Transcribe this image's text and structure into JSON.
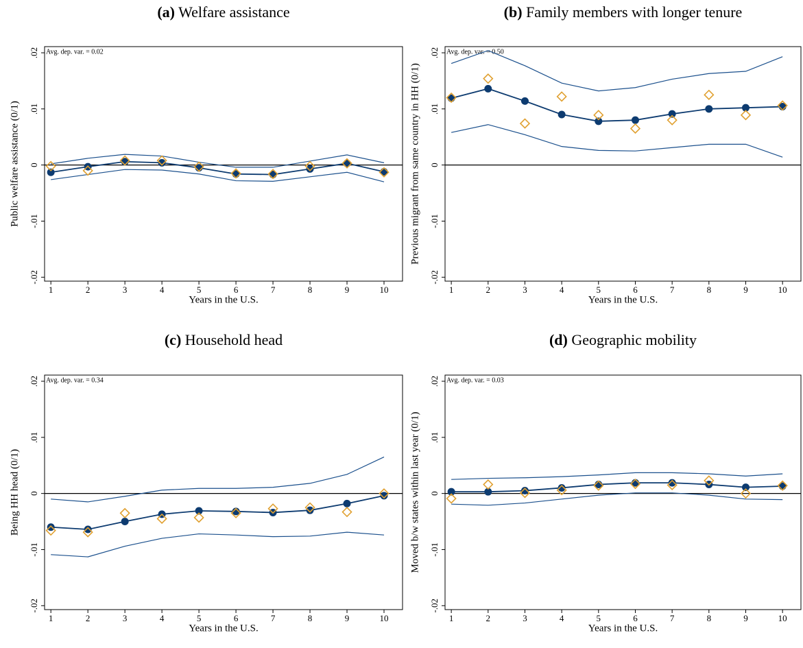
{
  "chart_data": [
    {
      "type": "line",
      "panel": "(a)",
      "title": "Welfare assistance",
      "xlabel": "Years in the U.S.",
      "ylabel": "Public welfare assistance (0/1)",
      "annotation": "Avg. dep. var. = 0.02",
      "x": [
        1,
        2,
        3,
        4,
        5,
        6,
        7,
        8,
        9,
        10
      ],
      "xlim": [
        0.83,
        10.5
      ],
      "xticks": [
        1,
        2,
        3,
        4,
        5,
        6,
        7,
        8,
        9,
        10
      ],
      "ylim": [
        -0.0207,
        0.0211
      ],
      "yticks": [
        {
          "value": -0.02,
          "label": "-.02"
        },
        {
          "value": -0.01,
          "label": "-.01"
        },
        0,
        {
          "value": 0.01,
          "label": ".01"
        },
        {
          "value": 0.02,
          "label": ".02"
        }
      ],
      "series": [
        {
          "color": "#1a4f8c",
          "marker": "none",
          "values": [
            0.0002,
            0.0012,
            0.0019,
            0.0016,
            0.0005,
            -0.0004,
            -0.0004,
            0.0007,
            0.0018,
            0.0004
          ]
        },
        {
          "color": "#1a4f8c",
          "marker": "none",
          "values": [
            -0.0026,
            -0.0017,
            -0.0008,
            -0.0009,
            -0.0016,
            -0.0028,
            -0.0029,
            -0.0021,
            -0.0013,
            -0.003
          ]
        },
        {
          "color": "#0d3b70",
          "marker": "circle",
          "values": [
            -0.0013,
            -0.0003,
            0.0006,
            0.0004,
            -0.0005,
            -0.0016,
            -0.0017,
            -0.0007,
            0.0003,
            -0.0012
          ]
        },
        {
          "color": "#e0a030",
          "marker": "diamond",
          "values": [
            -0.0002,
            -0.001,
            0.0008,
            0.0008,
            -0.0003,
            -0.0015,
            -0.0016,
            -0.0002,
            0.0003,
            -0.0013
          ]
        }
      ]
    },
    {
      "type": "line",
      "panel": "(b)",
      "title": "Family members with longer tenure",
      "xlabel": "Years in the U.S.",
      "ylabel": "Previous migrant from same country in HH (0/1)",
      "annotation": "Avg. dep. var. = 0.50",
      "x": [
        1,
        2,
        3,
        4,
        5,
        6,
        7,
        8,
        9,
        10
      ],
      "xlim": [
        0.83,
        10.5
      ],
      "xticks": [
        1,
        2,
        3,
        4,
        5,
        6,
        7,
        8,
        9,
        10
      ],
      "ylim": [
        -0.0207,
        0.0211
      ],
      "yticks": [
        {
          "value": -0.02,
          "label": "-.02"
        },
        {
          "value": -0.01,
          "label": "-.01"
        },
        0,
        {
          "value": 0.01,
          "label": ".01"
        },
        {
          "value": 0.02,
          "label": ".02"
        }
      ],
      "series": [
        {
          "color": "#1a4f8c",
          "marker": "none",
          "values": [
            0.0181,
            0.0204,
            0.0177,
            0.0146,
            0.0132,
            0.0138,
            0.0153,
            0.0163,
            0.0167,
            0.0193
          ]
        },
        {
          "color": "#1a4f8c",
          "marker": "none",
          "values": [
            0.0058,
            0.0072,
            0.0054,
            0.0033,
            0.0026,
            0.0025,
            0.0031,
            0.0037,
            0.0037,
            0.0014
          ]
        },
        {
          "color": "#0d3b70",
          "marker": "circle",
          "values": [
            0.0119,
            0.0136,
            0.0114,
            0.009,
            0.0078,
            0.008,
            0.0091,
            0.01,
            0.0102,
            0.0104
          ]
        },
        {
          "color": "#e0a030",
          "marker": "diamond",
          "values": [
            0.012,
            0.0154,
            0.0074,
            0.0122,
            0.0089,
            0.0065,
            0.008,
            0.0125,
            0.0089,
            0.0106
          ]
        }
      ]
    },
    {
      "type": "line",
      "panel": "(c)",
      "title": "Household head",
      "xlabel": "Years in the U.S.",
      "ylabel": "Being HH head (0/1)",
      "annotation": "Avg. dep. var. = 0.34",
      "x": [
        1,
        2,
        3,
        4,
        5,
        6,
        7,
        8,
        9,
        10
      ],
      "xlim": [
        0.83,
        10.5
      ],
      "xticks": [
        1,
        2,
        3,
        4,
        5,
        6,
        7,
        8,
        9,
        10
      ],
      "ylim": [
        -0.0207,
        0.0211
      ],
      "yticks": [
        {
          "value": -0.02,
          "label": "-.02"
        },
        {
          "value": -0.01,
          "label": "-.01"
        },
        0,
        {
          "value": 0.01,
          "label": ".01"
        },
        {
          "value": 0.02,
          "label": ".02"
        }
      ],
      "series": [
        {
          "color": "#1a4f8c",
          "marker": "none",
          "values": [
            -0.001,
            -0.0015,
            -0.0005,
            0.0006,
            0.0009,
            0.0009,
            0.0011,
            0.0018,
            0.0034,
            0.0065
          ]
        },
        {
          "color": "#1a4f8c",
          "marker": "none",
          "values": [
            -0.0109,
            -0.0113,
            -0.0094,
            -0.008,
            -0.0072,
            -0.0074,
            -0.0077,
            -0.0076,
            -0.0069,
            -0.0074
          ]
        },
        {
          "color": "#0d3b70",
          "marker": "circle",
          "values": [
            -0.006,
            -0.0064,
            -0.005,
            -0.0037,
            -0.0031,
            -0.0032,
            -0.0034,
            -0.003,
            -0.0018,
            -0.0004
          ]
        },
        {
          "color": "#e0a030",
          "marker": "diamond",
          "values": [
            -0.0066,
            -0.0069,
            -0.0035,
            -0.0045,
            -0.0043,
            -0.0035,
            -0.0027,
            -0.0025,
            -0.0033,
            0.0
          ]
        }
      ]
    },
    {
      "type": "line",
      "panel": "(d)",
      "title": "Geographic mobility",
      "xlabel": "Years in the U.S.",
      "ylabel": "Moved b/w states within last year (0/1)",
      "annotation": "Avg. dep. var. = 0.03",
      "x": [
        1,
        2,
        3,
        4,
        5,
        6,
        7,
        8,
        9,
        10
      ],
      "xlim": [
        0.83,
        10.5
      ],
      "xticks": [
        1,
        2,
        3,
        4,
        5,
        6,
        7,
        8,
        9,
        10
      ],
      "ylim": [
        -0.0207,
        0.0211
      ],
      "yticks": [
        {
          "value": -0.02,
          "label": "-.02"
        },
        {
          "value": -0.01,
          "label": "-.01"
        },
        0,
        {
          "value": 0.01,
          "label": ".01"
        },
        {
          "value": 0.02,
          "label": ".02"
        }
      ],
      "series": [
        {
          "color": "#1a4f8c",
          "marker": "none",
          "values": [
            0.0025,
            0.0027,
            0.0028,
            0.003,
            0.0033,
            0.0037,
            0.0037,
            0.0035,
            0.0031,
            0.0035
          ]
        },
        {
          "color": "#1a4f8c",
          "marker": "none",
          "values": [
            -0.0019,
            -0.0021,
            -0.0017,
            -0.001,
            -0.0003,
            0.0001,
            0.0001,
            -0.0003,
            -0.001,
            -0.0011
          ]
        },
        {
          "color": "#0d3b70",
          "marker": "circle",
          "values": [
            0.0003,
            0.0003,
            0.0005,
            0.001,
            0.0016,
            0.0019,
            0.0019,
            0.0016,
            0.0011,
            0.0013
          ]
        },
        {
          "color": "#e0a030",
          "marker": "diamond",
          "values": [
            -0.0009,
            0.0016,
            0.0001,
            0.0006,
            0.0014,
            0.0017,
            0.0015,
            0.0023,
            0.0,
            0.0014
          ]
        }
      ]
    }
  ]
}
